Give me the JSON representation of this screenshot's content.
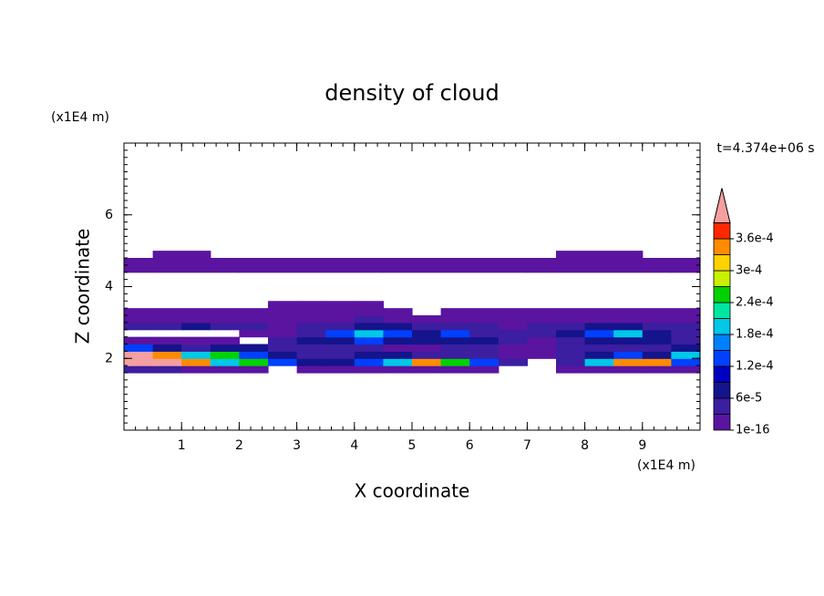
{
  "chart_data": {
    "type": "contour",
    "title": "density of cloud",
    "xlabel": "X coordinate",
    "ylabel": "Z coordinate",
    "x_unit": "(x1E4 m)",
    "y_unit": "(x1E4 m)",
    "time_label": "t=4.374e+06 s",
    "xlim": [
      0,
      10
    ],
    "ylim": [
      0,
      8
    ],
    "xticks": [
      1,
      2,
      3,
      4,
      5,
      6,
      7,
      8,
      9
    ],
    "yticks": [
      2,
      4,
      6
    ],
    "x_bins": [
      0,
      0.5,
      1,
      1.5,
      2,
      2.5,
      3,
      3.5,
      4,
      4.5,
      5,
      5.5,
      6,
      6.5,
      7,
      7.5,
      8,
      8.5,
      9,
      9.5,
      10
    ],
    "z_bins": [
      1.6,
      1.8,
      2.0,
      2.2,
      2.4,
      2.6,
      2.8,
      3.0,
      3.2,
      3.4,
      3.6,
      3.8,
      4.0,
      4.2,
      4.4,
      4.6,
      4.8,
      5.0
    ],
    "values": [
      [
        4e-05,
        4e-05,
        1e-05,
        1e-05,
        1e-05,
        null,
        1e-05,
        1e-05,
        1e-05,
        1e-05,
        1e-05,
        1e-05,
        1e-05,
        null,
        null,
        1e-05,
        1e-05,
        1e-05,
        1e-05,
        1e-05
      ],
      [
        0.00045,
        0.00045,
        0.00033,
        0.00019,
        0.00026,
        0.00013,
        7e-05,
        7e-05,
        0.00013,
        0.00019,
        0.00033,
        0.00026,
        0.00013,
        4e-05,
        null,
        4e-05,
        0.00019,
        0.00033,
        0.00033,
        0.00013
      ],
      [
        0.00045,
        0.00033,
        0.00019,
        0.00026,
        0.00013,
        7e-05,
        4e-05,
        4e-05,
        7e-05,
        7e-05,
        4e-05,
        4e-05,
        4e-05,
        1e-05,
        1e-05,
        4e-05,
        7e-05,
        0.00013,
        7e-05,
        0.00019
      ],
      [
        0.00013,
        7e-05,
        4e-05,
        7e-05,
        7e-05,
        4e-05,
        4e-05,
        4e-05,
        4e-05,
        1e-05,
        1e-05,
        4e-05,
        4e-05,
        1e-05,
        1e-05,
        4e-05,
        4e-05,
        4e-05,
        4e-05,
        7e-05
      ],
      [
        1e-05,
        1e-05,
        1e-05,
        1e-05,
        null,
        4e-05,
        7e-05,
        7e-05,
        0.00013,
        7e-05,
        7e-05,
        7e-05,
        7e-05,
        4e-05,
        1e-05,
        4e-05,
        7e-05,
        7e-05,
        7e-05,
        4e-05
      ],
      [
        null,
        null,
        null,
        null,
        1e-05,
        1e-05,
        4e-05,
        0.00013,
        0.00019,
        0.00013,
        7e-05,
        0.00013,
        4e-05,
        4e-05,
        4e-05,
        7e-05,
        0.00013,
        0.00019,
        7e-05,
        4e-05
      ],
      [
        4e-05,
        4e-05,
        7e-05,
        4e-05,
        4e-05,
        1e-05,
        4e-05,
        4e-05,
        7e-05,
        7e-05,
        4e-05,
        4e-05,
        4e-05,
        1e-05,
        4e-05,
        4e-05,
        7e-05,
        7e-05,
        4e-05,
        4e-05
      ],
      [
        1e-05,
        1e-05,
        1e-05,
        1e-05,
        1e-05,
        1e-05,
        1e-05,
        1e-05,
        4e-05,
        1e-05,
        1e-05,
        1e-05,
        1e-05,
        1e-05,
        1e-05,
        1e-05,
        1e-05,
        1e-05,
        1e-05,
        1e-05
      ],
      [
        1e-05,
        1e-05,
        1e-05,
        1e-05,
        1e-05,
        1e-05,
        1e-05,
        1e-05,
        1e-05,
        1e-05,
        null,
        1e-05,
        1e-05,
        1e-05,
        1e-05,
        1e-05,
        1e-05,
        1e-05,
        1e-05,
        1e-05
      ],
      [
        null,
        null,
        null,
        null,
        null,
        1e-05,
        1e-05,
        1e-05,
        1e-05,
        null,
        null,
        null,
        null,
        null,
        null,
        null,
        null,
        null,
        null,
        null
      ],
      [
        null,
        null,
        null,
        null,
        null,
        null,
        null,
        null,
        null,
        null,
        null,
        null,
        null,
        null,
        null,
        null,
        null,
        null,
        null,
        null
      ],
      [
        null,
        null,
        null,
        null,
        null,
        null,
        null,
        null,
        null,
        null,
        null,
        null,
        null,
        null,
        null,
        null,
        null,
        null,
        null,
        null
      ],
      [
        null,
        null,
        null,
        null,
        null,
        null,
        null,
        null,
        null,
        null,
        null,
        null,
        null,
        null,
        null,
        null,
        null,
        null,
        null,
        null
      ],
      [
        null,
        null,
        null,
        null,
        null,
        null,
        null,
        null,
        null,
        null,
        null,
        null,
        null,
        null,
        null,
        null,
        null,
        null,
        null,
        null
      ],
      [
        1e-05,
        1e-05,
        1e-05,
        1e-05,
        1e-05,
        1e-05,
        1e-05,
        1e-05,
        1e-05,
        1e-05,
        1e-05,
        1e-05,
        1e-05,
        1e-05,
        1e-05,
        1e-05,
        1e-05,
        1e-05,
        1e-05,
        1e-05
      ],
      [
        1e-05,
        1e-05,
        1e-05,
        1e-05,
        1e-05,
        1e-05,
        1e-05,
        1e-05,
        1e-05,
        1e-05,
        1e-05,
        1e-05,
        1e-05,
        1e-05,
        1e-05,
        1e-05,
        1e-05,
        1e-05,
        1e-05,
        1e-05
      ],
      [
        null,
        1e-05,
        1e-05,
        null,
        null,
        null,
        null,
        null,
        null,
        null,
        null,
        null,
        null,
        null,
        null,
        1e-05,
        1e-05,
        1e-05,
        null,
        null
      ]
    ],
    "levels": [
      1e-16,
      3e-05,
      6e-05,
      9e-05,
      0.00012,
      0.00015,
      0.00018,
      0.00021,
      0.00024,
      0.00027,
      0.0003,
      0.00033,
      0.00036,
      0.00039
    ],
    "colors": [
      "#5a14a0",
      "#3c1ea0",
      "#14148c",
      "#0000c0",
      "#0040ff",
      "#0080ff",
      "#00c8e6",
      "#00e6a0",
      "#00d200",
      "#c8f000",
      "#ffd200",
      "#ff8c00",
      "#ff2800"
    ],
    "over_color": "#f4a0a0",
    "colorbar_ticks": [
      {
        "value": 1e-16,
        "label": "1e-16"
      },
      {
        "value": 6e-05,
        "label": "6e-5"
      },
      {
        "value": 0.00012,
        "label": "1.2e-4"
      },
      {
        "value": 0.00018,
        "label": "1.8e-4"
      },
      {
        "value": 0.00024,
        "label": "2.4e-4"
      },
      {
        "value": 0.0003,
        "label": "3e-4"
      },
      {
        "value": 0.00036,
        "label": "3.6e-4"
      }
    ]
  }
}
